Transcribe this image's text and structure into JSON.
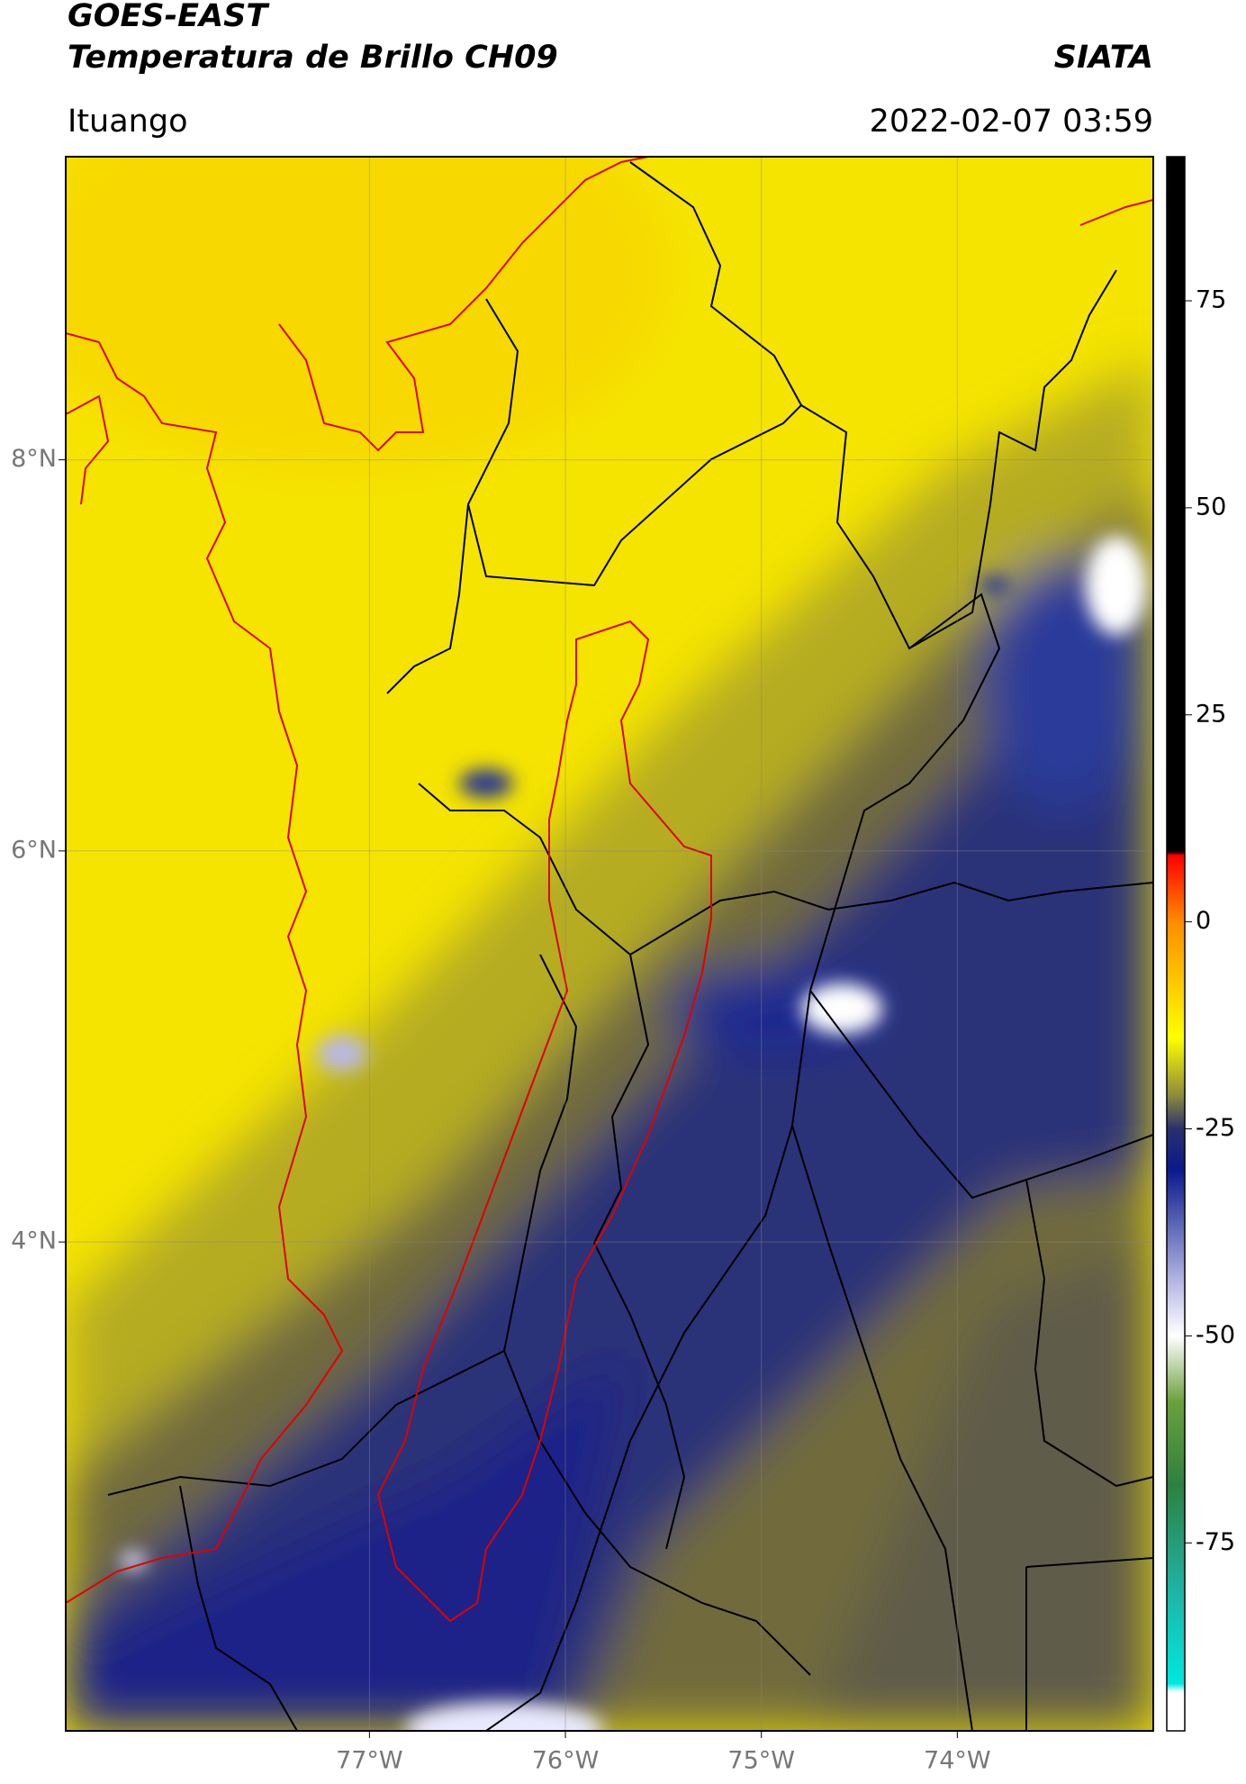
{
  "chart_data": {
    "type": "map",
    "title": "GOES-EAST",
    "subtitle": "Temperatura de Brillo CH09",
    "source": "SIATA",
    "location": "Ituango",
    "timestamp": "2022-02-07 03:59",
    "xlim": [
      -78.55,
      -73.0
    ],
    "ylim": [
      1.5,
      9.55
    ],
    "xticks": [
      {
        "value": -77,
        "label": "77°W"
      },
      {
        "value": -76,
        "label": "76°W"
      },
      {
        "value": -75,
        "label": "75°W"
      },
      {
        "value": -74,
        "label": "74°W"
      }
    ],
    "yticks": [
      {
        "value": 8,
        "label": "8°N"
      },
      {
        "value": 6,
        "label": "6°N"
      },
      {
        "value": 4,
        "label": "4°N"
      }
    ],
    "grid": true,
    "colorbar": {
      "lim": [
        -97.7,
        92.4
      ],
      "ticks": [
        75,
        50,
        25,
        0,
        -25,
        -50,
        -75
      ],
      "stops": [
        {
          "value": 92.4,
          "color": "#000000"
        },
        {
          "value": 8.5,
          "color": "#000000"
        },
        {
          "value": 8,
          "color": "#ff0000"
        },
        {
          "value": 0,
          "color": "#ff8c00"
        },
        {
          "value": -14,
          "color": "#ffff00"
        },
        {
          "value": -21,
          "color": "#8c8a3c"
        },
        {
          "value": -25,
          "color": "#2b2f6e"
        },
        {
          "value": -30,
          "color": "#0a1a8c"
        },
        {
          "value": -45,
          "color": "#c8c8ec"
        },
        {
          "value": -50,
          "color": "#ffffff"
        },
        {
          "value": -58,
          "color": "#6aa03c"
        },
        {
          "value": -68,
          "color": "#2e8040"
        },
        {
          "value": -80,
          "color": "#20b0a0"
        },
        {
          "value": -92,
          "color": "#00e8e0"
        },
        {
          "value": -93,
          "color": "#ffffff"
        },
        {
          "value": -97.7,
          "color": "#ffffff"
        }
      ]
    }
  }
}
